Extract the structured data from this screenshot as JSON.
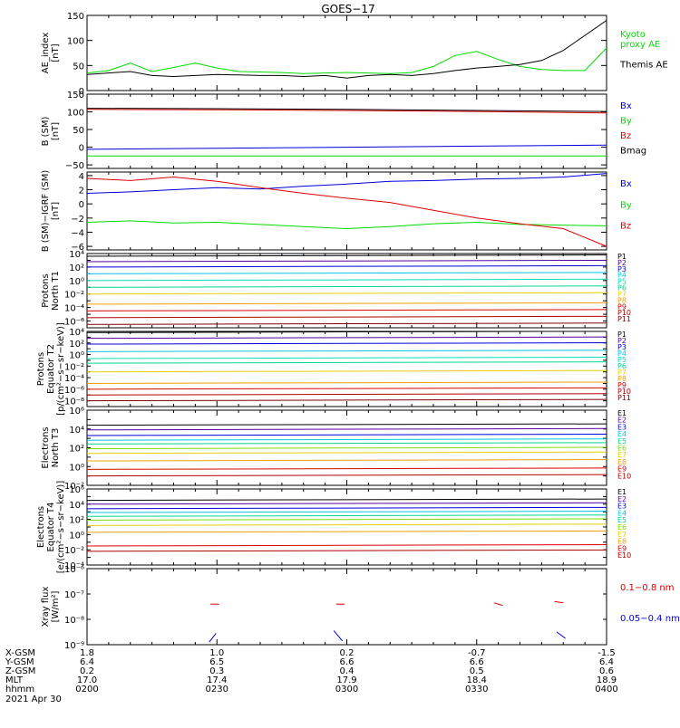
{
  "title": "GOES−17",
  "colors": {
    "black": "#000000",
    "red": "#dd0000",
    "green": "#00dd00",
    "blue": "#0000dd",
    "cyan": "#00c8e6",
    "aqua": "#00e0c0",
    "teal": "#00d890",
    "lime": "#7be000",
    "yellow": "#e6d000",
    "orange": "#f0a000",
    "darkred": "#b00000",
    "purple": "#5000a0",
    "navy": "#000090"
  },
  "time_axis": {
    "ticks": [
      "0200",
      "0230",
      "0300",
      "0330",
      "0400"
    ],
    "rows": [
      {
        "label": "X-GSM",
        "values": [
          "1.8",
          "1.0",
          "0.2",
          "-0.7",
          "-1.5"
        ]
      },
      {
        "label": "Y-GSM",
        "values": [
          "6.4",
          "6.5",
          "6.6",
          "6.6",
          "6.4"
        ]
      },
      {
        "label": "Z-GSM",
        "values": [
          "0.2",
          "0.3",
          "0.4",
          "0.5",
          "0.6"
        ]
      },
      {
        "label": "MLT",
        "values": [
          "17.0",
          "17.4",
          "17.9",
          "18.4",
          "18.9"
        ]
      }
    ],
    "hhmm_label": "hhmm",
    "date": "2021 Apr 30"
  },
  "chart_data": [
    {
      "type": "line",
      "panel": "AE index",
      "ylabel": "AE_index\n[nT]",
      "ylim": [
        0,
        150
      ],
      "yticks": [
        "0",
        "50",
        "100",
        "150"
      ],
      "legend": [
        {
          "name": "Kyoto\nproxy AE",
          "color": "#00dd00"
        },
        {
          "name": "Themis AE",
          "color": "#000000"
        }
      ],
      "x": [
        0,
        5,
        10,
        15,
        20,
        25,
        30,
        35,
        40,
        45,
        50,
        55,
        60,
        65,
        70,
        75,
        80,
        85,
        90,
        95,
        100,
        105,
        110,
        115,
        120
      ],
      "series": [
        {
          "name": "Kyoto proxy AE",
          "color": "#00dd00",
          "values": [
            35,
            40,
            55,
            38,
            46,
            55,
            45,
            38,
            37,
            36,
            34,
            35,
            36,
            35,
            34,
            36,
            48,
            70,
            78,
            62,
            48,
            42,
            40,
            40,
            85
          ]
        },
        {
          "name": "Themis AE",
          "color": "#000000",
          "values": [
            32,
            35,
            38,
            30,
            28,
            30,
            32,
            31,
            30,
            30,
            28,
            30,
            25,
            30,
            32,
            30,
            34,
            40,
            45,
            48,
            52,
            60,
            80,
            110,
            140
          ]
        }
      ]
    },
    {
      "type": "line",
      "panel": "B (SM)",
      "ylabel": "B (SM)\n[nT]",
      "ylim": [
        -60,
        150
      ],
      "yticks": [
        "−50",
        "0",
        "50",
        "100",
        "150"
      ],
      "legend": [
        {
          "name": "Bx",
          "color": "#0000dd"
        },
        {
          "name": "By",
          "color": "#00dd00"
        },
        {
          "name": "Bz",
          "color": "#dd0000"
        },
        {
          "name": "Bmag",
          "color": "#000000"
        }
      ],
      "x": [
        0,
        30,
        60,
        90,
        120
      ],
      "series": [
        {
          "name": "Bx",
          "color": "#0000dd",
          "values": [
            -6,
            -3,
            0,
            3,
            6
          ]
        },
        {
          "name": "By",
          "color": "#00dd00",
          "values": [
            -25,
            -25,
            -25,
            -25,
            -25
          ]
        },
        {
          "name": "Bz",
          "color": "#dd0000",
          "values": [
            107,
            106,
            104,
            101,
            97
          ]
        },
        {
          "name": "Bmag",
          "color": "#000000",
          "values": [
            110,
            109,
            107,
            104,
            101
          ]
        }
      ]
    },
    {
      "type": "line",
      "panel": "B (SM)-IGRF (SM)",
      "ylabel": "B (SM)−IGRF (SM)\n[nT]",
      "ylim": [
        -6.5,
        4.5
      ],
      "yticks": [
        "−6",
        "−4",
        "−2",
        "0",
        "2",
        "4"
      ],
      "legend": [
        {
          "name": "Bx",
          "color": "#0000dd"
        },
        {
          "name": "By",
          "color": "#00dd00"
        },
        {
          "name": "Bz",
          "color": "#dd0000"
        }
      ],
      "x": [
        0,
        10,
        20,
        30,
        40,
        50,
        60,
        70,
        80,
        90,
        100,
        110,
        120
      ],
      "series": [
        {
          "name": "Bx",
          "color": "#0000dd",
          "values": [
            1.5,
            1.7,
            2.0,
            2.3,
            2.1,
            2.5,
            2.8,
            3.2,
            3.3,
            3.5,
            3.6,
            3.8,
            4.3
          ]
        },
        {
          "name": "By",
          "color": "#00dd00",
          "values": [
            -2.6,
            -2.4,
            -2.7,
            -2.6,
            -2.9,
            -3.2,
            -3.5,
            -3.2,
            -2.8,
            -2.6,
            -2.9,
            -3.0,
            -3.1
          ]
        },
        {
          "name": "Bz",
          "color": "#dd0000",
          "values": [
            3.6,
            3.3,
            3.8,
            3.2,
            2.3,
            1.5,
            0.8,
            0.2,
            -0.9,
            -2.0,
            -2.8,
            -3.5,
            -6.0
          ]
        }
      ]
    },
    {
      "type": "line",
      "panel": "Protons North T1",
      "ylabel": "Protons\nNorth T1",
      "ylog": true,
      "ylim_exp": [
        -7,
        4
      ],
      "yticks": [
        "10⁴",
        "10²",
        "10⁰",
        "10⁻²",
        "10⁻⁴",
        "10⁻⁶"
      ],
      "channels": [
        {
          "name": "P1",
          "color": "#000000",
          "log_flux": 3.6
        },
        {
          "name": "P2",
          "color": "#5000a0",
          "log_flux": 2.8
        },
        {
          "name": "P3",
          "color": "#0000dd",
          "log_flux": 2.0
        },
        {
          "name": "P4",
          "color": "#00c8e6",
          "log_flux": 1.0
        },
        {
          "name": "P5",
          "color": "#00e0c0",
          "log_flux": 0.0
        },
        {
          "name": "P6",
          "color": "#00d890",
          "log_flux": -1.0
        },
        {
          "name": "P7",
          "color": "#e6d000",
          "log_flux": -2.0
        },
        {
          "name": "P8",
          "color": "#f0a000",
          "log_flux": -3.5
        },
        {
          "name": "P9",
          "color": "#dd0000",
          "log_flux": -4.5
        },
        {
          "name": "P10",
          "color": "#b00000",
          "log_flux": -5.5
        },
        {
          "name": "P11",
          "color": "#800000",
          "log_flux": -6.5
        }
      ]
    },
    {
      "type": "line",
      "panel": "Protons Equator T2",
      "ylabel": "Protons\nEquator T2\n[p/(cm²−s−sr−keV)]",
      "ylog": true,
      "ylim_exp": [
        -9,
        4
      ],
      "yticks": [
        "10⁴",
        "10²",
        "10⁰",
        "10⁻²",
        "10⁻⁴",
        "10⁻⁶",
        "10⁻⁸"
      ],
      "channels": [
        {
          "name": "P1",
          "color": "#000000",
          "log_flux": 3.8
        },
        {
          "name": "P2",
          "color": "#5000a0",
          "log_flux": 2.8
        },
        {
          "name": "P3",
          "color": "#0000dd",
          "log_flux": 1.8
        },
        {
          "name": "P4",
          "color": "#00c8e6",
          "log_flux": 0.5
        },
        {
          "name": "P5",
          "color": "#00e0c0",
          "log_flux": -0.7
        },
        {
          "name": "P6",
          "color": "#00d890",
          "log_flux": -1.5
        },
        {
          "name": "P7",
          "color": "#e6d000",
          "log_flux": -3.0
        },
        {
          "name": "P8",
          "color": "#f0a000",
          "log_flux": -5.0
        },
        {
          "name": "P9",
          "color": "#dd0000",
          "log_flux": -6.0
        },
        {
          "name": "P10",
          "color": "#b00000",
          "log_flux": -7.0
        },
        {
          "name": "P11",
          "color": "#800000",
          "log_flux": -8.0
        }
      ]
    },
    {
      "type": "line",
      "panel": "Electrons North T3",
      "ylabel": "Electrons\nNorth T3",
      "ylog": true,
      "ylim_exp": [
        -2,
        6
      ],
      "yticks": [
        "10⁶",
        "10⁴",
        "10²",
        "10⁰",
        "10⁻²"
      ],
      "channels": [
        {
          "name": "E1",
          "color": "#000000",
          "log_flux": 4.4
        },
        {
          "name": "E2",
          "color": "#5000a0",
          "log_flux": 3.9
        },
        {
          "name": "E3",
          "color": "#0000dd",
          "log_flux": 3.3
        },
        {
          "name": "E4",
          "color": "#00c8e6",
          "log_flux": 2.8
        },
        {
          "name": "E5",
          "color": "#00d890",
          "log_flux": 2.4
        },
        {
          "name": "E6",
          "color": "#7be000",
          "log_flux": 1.9
        },
        {
          "name": "E7",
          "color": "#e6d000",
          "log_flux": 1.4
        },
        {
          "name": "E8",
          "color": "#f0a000",
          "log_flux": 0.6
        },
        {
          "name": "E9",
          "color": "#dd0000",
          "log_flux": -0.3
        },
        {
          "name": "E10",
          "color": "#b00000",
          "log_flux": -1.0
        }
      ]
    },
    {
      "type": "line",
      "panel": "Electrons Equator T4",
      "ylabel": "Electrons\nEquator T4\n[e/(cm²−s−sr−keV)]",
      "ylog": true,
      "ylim_exp": [
        -4,
        6
      ],
      "yticks": [
        "10⁶",
        "10⁴",
        "10²",
        "10⁰",
        "10⁻²",
        "10⁻⁴"
      ],
      "channels": [
        {
          "name": "E1",
          "color": "#000000",
          "log_flux": 4.5
        },
        {
          "name": "E2",
          "color": "#5000a0",
          "log_flux": 4.0
        },
        {
          "name": "E3",
          "color": "#0000dd",
          "log_flux": 3.4
        },
        {
          "name": "E4",
          "color": "#00c8e6",
          "log_flux": 2.9
        },
        {
          "name": "E5",
          "color": "#00d890",
          "log_flux": 2.4
        },
        {
          "name": "E6",
          "color": "#7be000",
          "log_flux": 1.9
        },
        {
          "name": "E7",
          "color": "#e6d000",
          "log_flux": 1.2
        },
        {
          "name": "E8",
          "color": "#f0a000",
          "log_flux": 0.3
        },
        {
          "name": "E9",
          "color": "#dd0000",
          "log_flux": -1.5
        },
        {
          "name": "E10",
          "color": "#b00000",
          "log_flux": -2.2
        }
      ]
    },
    {
      "type": "line",
      "panel": "Xray flux",
      "ylabel": "Xray flux\n[W/m²]",
      "ylog": true,
      "ylim_exp": [
        -9,
        -6
      ],
      "yticks": [
        "10⁻⁶",
        "10⁻⁷",
        "10⁻⁸",
        "10⁻⁹"
      ],
      "legend": [
        {
          "name": "0.1−0.8 nm",
          "color": "#dd0000"
        },
        {
          "name": "0.05−0.4 nm",
          "color": "#0000dd"
        }
      ],
      "segments": [
        {
          "band": "0.1−0.8 nm",
          "color": "#dd0000",
          "x": [
            28.5,
            30.5
          ],
          "log_flux": [
            -7.4,
            -7.4
          ]
        },
        {
          "band": "0.1−0.8 nm",
          "color": "#dd0000",
          "x": [
            57.5,
            59.5
          ],
          "log_flux": [
            -7.4,
            -7.4
          ]
        },
        {
          "band": "0.1−0.8 nm",
          "color": "#dd0000",
          "x": [
            94,
            96
          ],
          "log_flux": [
            -7.35,
            -7.45
          ]
        },
        {
          "band": "0.1−0.8 nm",
          "color": "#dd0000",
          "x": [
            108,
            110
          ],
          "log_flux": [
            -7.3,
            -7.35
          ]
        },
        {
          "band": "0.05−0.4 nm",
          "color": "#0000dd",
          "x": [
            28.2,
            29.8
          ],
          "log_flux": [
            -8.9,
            -8.55
          ]
        },
        {
          "band": "0.05−0.4 nm",
          "color": "#0000dd",
          "x": [
            57,
            59
          ],
          "log_flux": [
            -8.45,
            -8.85
          ]
        },
        {
          "band": "0.05−0.4 nm",
          "color": "#0000dd",
          "x": [
            108.5,
            110.5
          ],
          "log_flux": [
            -8.5,
            -8.75
          ]
        }
      ]
    }
  ]
}
